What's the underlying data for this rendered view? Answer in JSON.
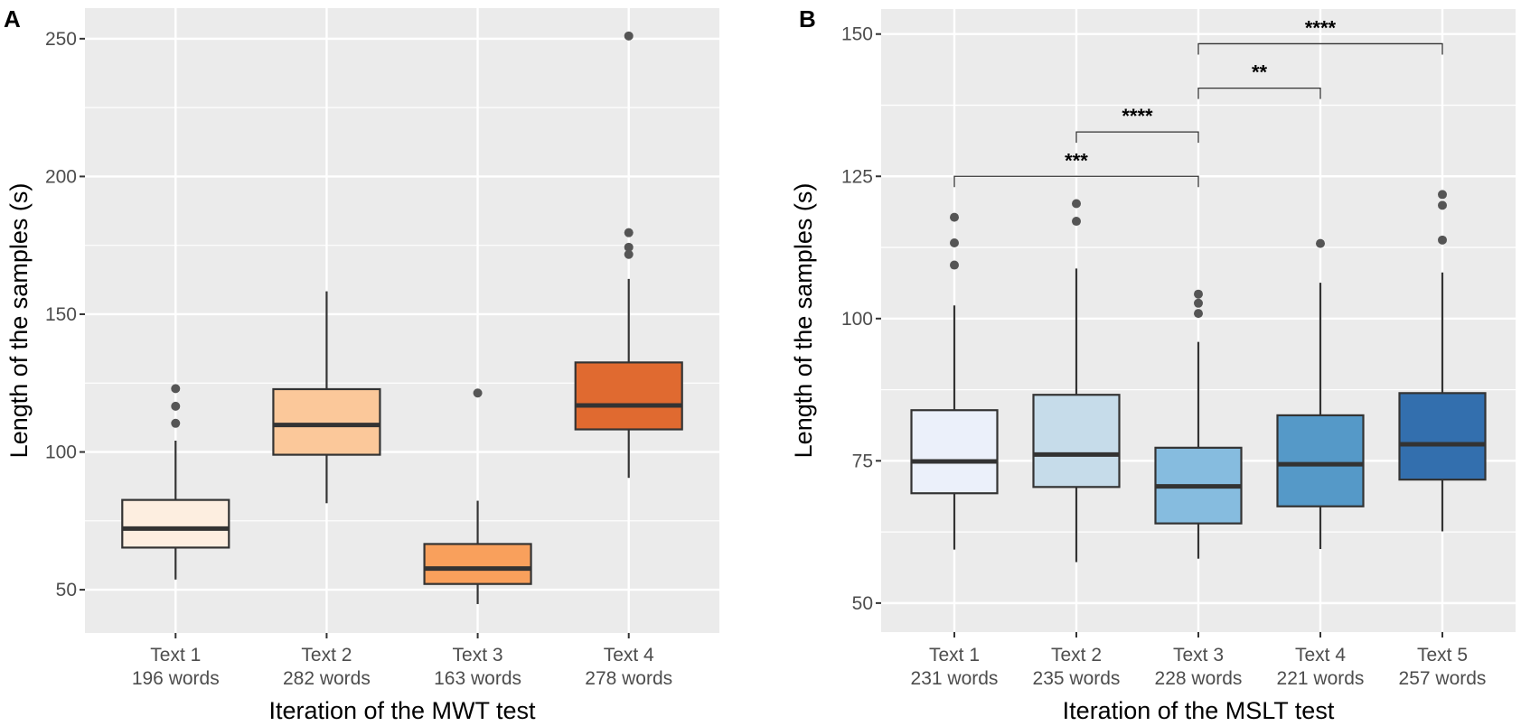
{
  "chart_data": [
    {
      "panel": "A",
      "type": "box",
      "xlabel": "Iteration of the MWT test",
      "ylabel": "Length of the samples (s)",
      "ylim": [
        34.3,
        261.1
      ],
      "yticks": [
        50,
        100,
        150,
        200,
        250
      ],
      "grid": true,
      "categories": [
        {
          "name": "Text 1",
          "sub": "196 words"
        },
        {
          "name": "Text 2",
          "sub": "282 words"
        },
        {
          "name": "Text 3",
          "sub": "163 words"
        },
        {
          "name": "Text 4",
          "sub": "278 words"
        }
      ],
      "boxes": [
        {
          "min": 53.7,
          "q1": 65.3,
          "median": 72.2,
          "q3": 82.6,
          "max": 104.1,
          "outliers": [
            110.4,
            116.6,
            123.0
          ],
          "color": "#fdeee0"
        },
        {
          "min": 81.4,
          "q1": 99.0,
          "median": 109.8,
          "q3": 122.8,
          "max": 158.3,
          "outliers": [],
          "color": "#fbc89a"
        },
        {
          "min": 44.8,
          "q1": 52.1,
          "median": 57.7,
          "q3": 66.6,
          "max": 82.3,
          "outliers": [
            121.4
          ],
          "color": "#f9a05c"
        },
        {
          "min": 90.6,
          "q1": 108.2,
          "median": 116.9,
          "q3": 132.5,
          "max": 162.8,
          "outliers": [
            171.7,
            174.3,
            179.6,
            251.0
          ],
          "color": "#e06a30"
        }
      ],
      "comparisons": []
    },
    {
      "panel": "B",
      "type": "box",
      "xlabel": "Iteration of the MSLT test",
      "ylabel": "Length of the samples (s)",
      "ylim": [
        44.9,
        154.4
      ],
      "yticks": [
        50,
        75,
        100,
        125,
        150
      ],
      "grid": true,
      "categories": [
        {
          "name": "Text 1",
          "sub": "231 words"
        },
        {
          "name": "Text 2",
          "sub": "235 words"
        },
        {
          "name": "Text 3",
          "sub": "228 words"
        },
        {
          "name": "Text 4",
          "sub": "221 words"
        },
        {
          "name": "Text 5",
          "sub": "257 words"
        }
      ],
      "boxes": [
        {
          "min": 59.4,
          "q1": 69.3,
          "median": 74.9,
          "q3": 83.9,
          "max": 102.3,
          "outliers": [
            109.4,
            113.3,
            117.8
          ],
          "color": "#ebf0fa"
        },
        {
          "min": 57.2,
          "q1": 70.4,
          "median": 76.1,
          "q3": 86.6,
          "max": 108.8,
          "outliers": [
            117.1,
            120.2
          ],
          "color": "#c6dcea"
        },
        {
          "min": 57.8,
          "q1": 64.0,
          "median": 70.5,
          "q3": 77.3,
          "max": 95.9,
          "outliers": [
            100.9,
            102.7,
            104.3
          ],
          "color": "#86bcdf"
        },
        {
          "min": 59.5,
          "q1": 67.0,
          "median": 74.4,
          "q3": 83.0,
          "max": 106.3,
          "outliers": [
            113.2
          ],
          "color": "#5599c8"
        },
        {
          "min": 62.6,
          "q1": 71.7,
          "median": 77.9,
          "q3": 86.9,
          "max": 108.1,
          "outliers": [
            113.8,
            119.9,
            121.8
          ],
          "color": "#336fae"
        }
      ],
      "comparisons": [
        {
          "from": 1,
          "to": 3,
          "y": 125.0,
          "label": "***"
        },
        {
          "from": 2,
          "to": 3,
          "y": 132.8,
          "label": "****"
        },
        {
          "from": 3,
          "to": 4,
          "y": 140.5,
          "label": "**"
        },
        {
          "from": 3,
          "to": 5,
          "y": 148.3,
          "label": "****"
        }
      ]
    }
  ]
}
